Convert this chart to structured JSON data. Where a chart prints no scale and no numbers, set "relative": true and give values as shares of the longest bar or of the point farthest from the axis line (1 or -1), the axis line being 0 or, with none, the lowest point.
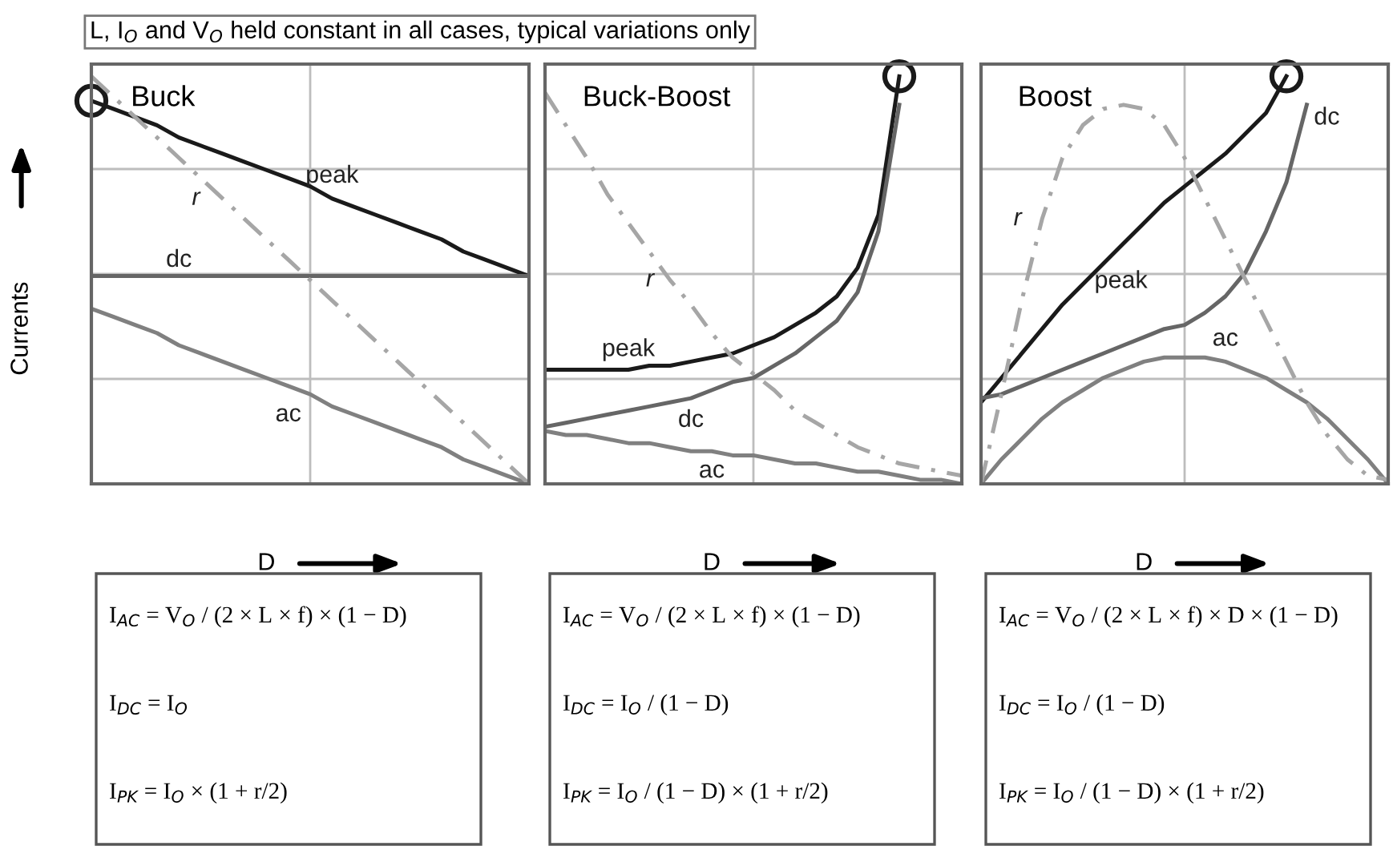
{
  "chart_data": [
    {
      "type": "line",
      "title": "Buck",
      "subtitle": "L, I$_{O}$ and V$_{O}$ held constant in all cases, typical variations only",
      "xlabel": "D",
      "ylabel": "Currents",
      "relative": true,
      "grid": true,
      "legend": false,
      "categories": [
        null,
        null,
        null,
        null,
        null,
        null,
        null,
        null,
        null,
        null,
        null,
        null,
        null,
        null,
        null,
        null,
        null,
        null,
        null,
        null,
        null
      ],
      "series": [
        {
          "name": "peak",
          "color": "#1a1a1a",
          "line_style": "solid",
          "values": [
            0.94,
            0.92,
            0.9,
            0.88,
            0.85,
            0.83,
            0.81,
            0.79,
            0.77,
            0.75,
            0.73,
            0.7,
            0.68,
            0.66,
            0.64,
            0.62,
            0.6,
            0.57,
            0.55,
            0.53,
            0.51
          ]
        },
        {
          "name": "dc",
          "color": "#666666",
          "line_style": "solid",
          "values": [
            0.51,
            0.51,
            0.51,
            0.51,
            0.51,
            0.51,
            0.51,
            0.51,
            0.51,
            0.51,
            0.51,
            0.51,
            0.51,
            0.51,
            0.51,
            0.51,
            0.51,
            0.51,
            0.51,
            0.51,
            0.51
          ]
        },
        {
          "name": "ac",
          "color": "#808080",
          "line_style": "solid",
          "values": [
            0.43,
            0.41,
            0.39,
            0.37,
            0.34,
            0.32,
            0.3,
            0.28,
            0.26,
            0.24,
            0.22,
            0.19,
            0.17,
            0.15,
            0.13,
            0.11,
            0.09,
            0.06,
            0.04,
            0.02,
            0
          ]
        },
        {
          "name": "r",
          "color": "#a6a6a6",
          "line_style": "dashed",
          "values": [
            1,
            0.95,
            0.9,
            0.85,
            0.8,
            0.75,
            0.7,
            0.65,
            0.6,
            0.55,
            0.5,
            0.45,
            0.4,
            0.35,
            0.3,
            0.25,
            0.2,
            0.15,
            0.1,
            0.05,
            0
          ]
        }
      ],
      "annotations": [
        "I$_{AC}$ = V$_{O}$ / (2 × L × f) × (1 − D)",
        "I$_{DC}$ = I$_{O}$",
        "I$_{PK}$ = I$_{O}$ × (1 + r/2)"
      ]
    },
    {
      "type": "line",
      "title": "Buck-Boost",
      "xlabel": "D",
      "relative": true,
      "grid": true,
      "legend": false,
      "categories": [
        null,
        null,
        null,
        null,
        null,
        null,
        null,
        null,
        null,
        null,
        null,
        null,
        null,
        null,
        null,
        null,
        null,
        null,
        null,
        null,
        null
      ],
      "series": [
        {
          "name": "peak",
          "color": "#1a1a1a",
          "line_style": "solid",
          "values": [
            0.28,
            0.28,
            0.28,
            0.28,
            0.28,
            0.29,
            0.29,
            0.3,
            0.31,
            0.32,
            0.34,
            0.36,
            0.39,
            0.42,
            0.46,
            0.53,
            0.66,
            1,
            null,
            null,
            null
          ]
        },
        {
          "name": "dc",
          "color": "#666666",
          "line_style": "solid",
          "values": [
            0.14,
            0.15,
            0.16,
            0.17,
            0.18,
            0.19,
            0.2,
            0.21,
            0.23,
            0.25,
            0.26,
            0.29,
            0.32,
            0.36,
            0.4,
            0.47,
            0.62,
            0.93,
            null,
            null,
            null
          ]
        },
        {
          "name": "ac",
          "color": "#808080",
          "line_style": "solid",
          "values": [
            0.13,
            0.12,
            0.12,
            0.11,
            0.1,
            0.1,
            0.09,
            0.08,
            0.08,
            0.07,
            0.07,
            0.06,
            0.05,
            0.05,
            0.04,
            0.03,
            0.03,
            0.02,
            0.01,
            0.01,
            0
          ]
        },
        {
          "name": "r",
          "color": "#a6a6a6",
          "line_style": "dashed",
          "values": [
            0.96,
            0.88,
            0.8,
            0.71,
            0.64,
            0.57,
            0.5,
            0.44,
            0.37,
            0.31,
            0.27,
            0.23,
            0.18,
            0.15,
            0.12,
            0.09,
            0.07,
            0.05,
            0.04,
            0.03,
            0.02
          ]
        }
      ],
      "annotations": [
        "I$_{AC}$ = V$_{O}$ / (2 × L × f) × (1 − D)",
        "I$_{DC}$ = I$_{O}$ / (1 − D)",
        "I$_{PK}$ = I$_{O}$ / (1 − D) × (1 + r/2)"
      ]
    },
    {
      "type": "line",
      "title": "Boost",
      "xlabel": "D",
      "relative": true,
      "grid": true,
      "legend": false,
      "categories": [
        null,
        null,
        null,
        null,
        null,
        null,
        null,
        null,
        null,
        null,
        null,
        null,
        null,
        null,
        null,
        null,
        null,
        null,
        null,
        null,
        null
      ],
      "series": [
        {
          "name": "peak",
          "color": "#1a1a1a",
          "line_style": "solid",
          "values": [
            0.2,
            0.26,
            0.32,
            0.38,
            0.44,
            0.49,
            0.54,
            0.59,
            0.64,
            0.69,
            0.73,
            0.77,
            0.81,
            0.86,
            0.91,
            1,
            null,
            null,
            null,
            null,
            null
          ]
        },
        {
          "name": "dc",
          "color": "#666666",
          "line_style": "solid",
          "values": [
            0.21,
            0.22,
            0.24,
            0.26,
            0.28,
            0.3,
            0.32,
            0.34,
            0.36,
            0.38,
            0.39,
            0.42,
            0.46,
            0.52,
            0.62,
            0.74,
            0.93,
            null,
            null,
            null,
            null
          ]
        },
        {
          "name": "ac",
          "color": "#808080",
          "line_style": "solid",
          "values": [
            0,
            0.06,
            0.11,
            0.16,
            0.2,
            0.23,
            0.26,
            0.28,
            0.3,
            0.31,
            0.31,
            0.31,
            0.3,
            0.28,
            0.26,
            0.23,
            0.2,
            0.16,
            0.11,
            0.06,
            0
          ]
        },
        {
          "name": "r",
          "color": "#a6a6a6",
          "line_style": "dashed",
          "values": [
            0,
            0.22,
            0.45,
            0.65,
            0.8,
            0.88,
            0.92,
            0.93,
            0.92,
            0.88,
            0.8,
            0.7,
            0.6,
            0.5,
            0.4,
            0.3,
            0.2,
            0.12,
            0.06,
            0.02,
            0.01
          ]
        }
      ],
      "annotations": [
        "I$_{AC}$ = V$_{O}$ / (2 × L × f) × D × (1 − D)",
        "I$_{DC}$ = I$_{O}$ / (1 − D)",
        "I$_{PK}$ = I$_{O}$ / (1 − D) × (1 + r/2)"
      ]
    }
  ]
}
